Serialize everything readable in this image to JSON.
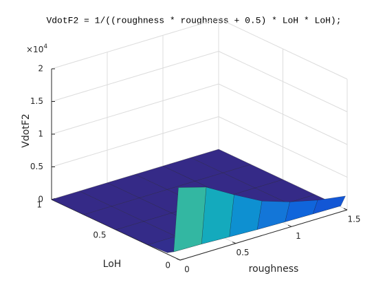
{
  "chart_data": {
    "type": "surface",
    "title": "VdotF2 = 1/((roughness * roughness + 0.5) *  LoH * LoH);",
    "x_label": "roughness",
    "y_label": "LoH",
    "z_label": "VdotF2",
    "z_exponent": {
      "base": "×10",
      "power": "4"
    },
    "x": [
      0,
      0.25,
      0.5,
      0.75,
      1,
      1.25,
      1.5
    ],
    "y": [
      0.0135,
      0.05,
      0.1,
      0.25,
      0.5,
      0.75,
      1
    ],
    "z": [
      [
        10974,
        9756,
        7316,
        5066,
        3658,
        2646,
        1996
      ],
      [
        800,
        711,
        533,
        369,
        267,
        193,
        145
      ],
      [
        200,
        178,
        133,
        92,
        67,
        48,
        36
      ],
      [
        32,
        28.4,
        21.3,
        14.8,
        10.7,
        7.7,
        5.8
      ],
      [
        8,
        7.1,
        5.3,
        3.7,
        2.7,
        1.9,
        1.5
      ],
      [
        3.6,
        3.2,
        2.4,
        1.6,
        1.2,
        0.86,
        0.65
      ],
      [
        2,
        1.78,
        1.33,
        0.92,
        0.67,
        0.48,
        0.36
      ]
    ],
    "xlim": [
      0,
      1.5
    ],
    "ylim": [
      0,
      1
    ],
    "zlim": [
      0,
      20000
    ],
    "xticks": [
      0,
      0.5,
      1,
      1.5
    ],
    "yticks": [
      0,
      0.5,
      1
    ],
    "zticks": [
      0,
      {
        "value": 5000,
        "label": "0.5"
      },
      {
        "value": 10000,
        "label": "1"
      },
      {
        "value": 15000,
        "label": "1.5"
      },
      {
        "value": 20000,
        "label": "2"
      }
    ],
    "grid": true,
    "colormap": [
      "#352a87",
      "#0f5cdd",
      "#1481d6",
      "#06a4ca",
      "#2eb7a4",
      "#87bf77",
      "#d1bb59",
      "#fec832",
      "#f9fb0e"
    ],
    "edge_color": "#1a1a1a"
  }
}
